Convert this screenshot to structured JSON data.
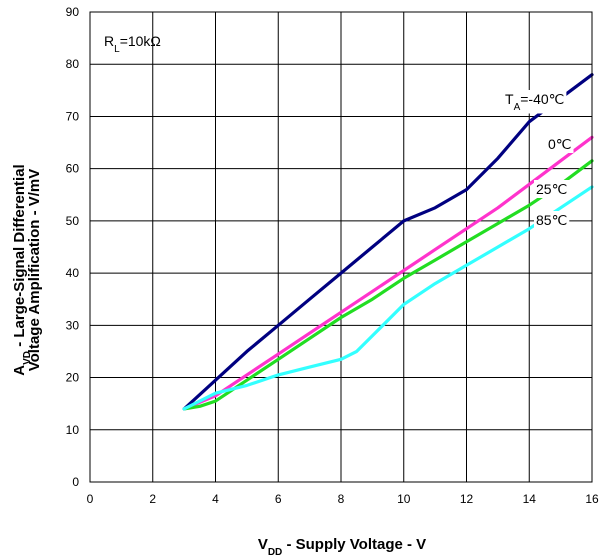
{
  "chart_data": {
    "type": "line",
    "xlim": [
      0,
      16
    ],
    "ylim": [
      0,
      90
    ],
    "x_ticks": [
      "0",
      "2",
      "4",
      "6",
      "8",
      "10",
      "12",
      "14",
      "16"
    ],
    "y_ticks": [
      "0",
      "10",
      "20",
      "30",
      "40",
      "50",
      "60",
      "70",
      "80",
      "90"
    ],
    "grid": true,
    "xlabel": {
      "main": "V",
      "sub": "DD",
      "rest": " - Supply Voltage - V"
    },
    "ylabel": {
      "line1_main": "A",
      "line1_sub": "VD",
      "line1_rest": " - Large-Signal Differential",
      "line2": "Voltage Amplification - V/mV"
    },
    "annotation": {
      "main": "R",
      "sub": "L",
      "rest": "=10kΩ"
    },
    "series": [
      {
        "label_main": "T",
        "label_sub": "A",
        "label_rest": "=-40℃",
        "color": "#000080",
        "x": [
          3,
          4,
          5,
          6,
          7,
          8,
          9,
          10,
          11,
          12,
          13,
          14,
          15,
          16
        ],
        "y": [
          14,
          19.5,
          25,
          30,
          35,
          40,
          45,
          50,
          52.5,
          56,
          62,
          69,
          73.5,
          78
        ]
      },
      {
        "label_main": "0℃",
        "label_sub": "",
        "label_rest": "",
        "color": "#FF33CC",
        "x": [
          3,
          4,
          5,
          6,
          7,
          8,
          9,
          10,
          11,
          12,
          13,
          14,
          15,
          16
        ],
        "y": [
          14,
          16.5,
          20.5,
          24.5,
          28.5,
          32.5,
          36.5,
          40.5,
          44.5,
          48.5,
          52.5,
          57,
          61.5,
          66
        ]
      },
      {
        "label_main": "25℃",
        "label_sub": "",
        "label_rest": "",
        "color": "#22DD22",
        "x": [
          3,
          3.5,
          4,
          5,
          6,
          7,
          8,
          9,
          10,
          11,
          12,
          13,
          14,
          15,
          16
        ],
        "y": [
          14,
          14.5,
          15.5,
          19.5,
          23.5,
          27.5,
          31.5,
          35,
          39,
          42.5,
          46,
          49.5,
          53,
          57,
          61.5
        ]
      },
      {
        "label_main": "85℃",
        "label_sub": "",
        "label_rest": "",
        "color": "#33FFFF",
        "x": [
          3,
          4,
          5,
          6,
          7,
          8,
          8.5,
          9,
          10,
          11,
          12,
          13,
          14,
          15,
          16
        ],
        "y": [
          14,
          17,
          18.5,
          20.5,
          22,
          23.5,
          25,
          28,
          34,
          38,
          41.5,
          45,
          48.5,
          52.5,
          56.5
        ]
      }
    ]
  }
}
